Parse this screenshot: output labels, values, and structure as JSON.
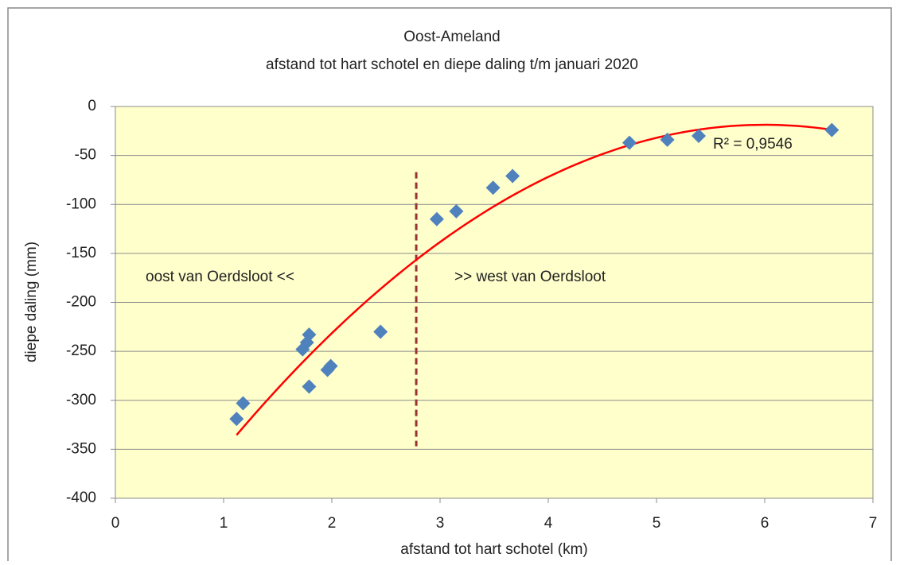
{
  "chart_data": {
    "type": "scatter",
    "title": "Oost-Ameland",
    "subtitle": "afstand tot hart schotel en diepe daling t/m januari 2020",
    "x_label": "afstand tot hart schotel (km)",
    "y_label": "diepe daling (mm)",
    "series": [
      {
        "color": "#4f81bd",
        "x": [
          6.62,
          5.39,
          5.1,
          4.75,
          3.67,
          3.49,
          3.15,
          2.97,
          2.45,
          1.99,
          1.96,
          1.79,
          1.77,
          1.73,
          1.79,
          1.18,
          1.12
        ],
        "values": [
          -24,
          -30,
          -34,
          -37,
          -71,
          -83,
          -107,
          -115,
          -230,
          -265,
          -269,
          -233,
          -241,
          -248,
          -286,
          -303,
          -319
        ]
      }
    ],
    "trendline": {
      "type": "polynomial",
      "color": "#ff0000",
      "coefficients": [
        -13.3,
        159.6,
        -497.5
      ],
      "xrange": [
        1.12,
        6.62
      ],
      "label": "R² = 0,9546"
    },
    "reference_line": {
      "x": 2.78,
      "y_range": [
        -67,
        -347
      ],
      "color": "#993333"
    },
    "annotations": [
      "oost van Oerdsloot <<",
      ">> west van Oerdsloot"
    ],
    "xlim": [
      0,
      7
    ],
    "xticks": [
      0,
      1,
      2,
      3,
      4,
      5,
      6,
      7
    ],
    "ylim": [
      -400,
      0
    ],
    "yticks": [
      0,
      -50,
      -100,
      -150,
      -200,
      -250,
      -300,
      -350,
      -400
    ],
    "grid": true,
    "plot_background": "#ffffcc"
  }
}
